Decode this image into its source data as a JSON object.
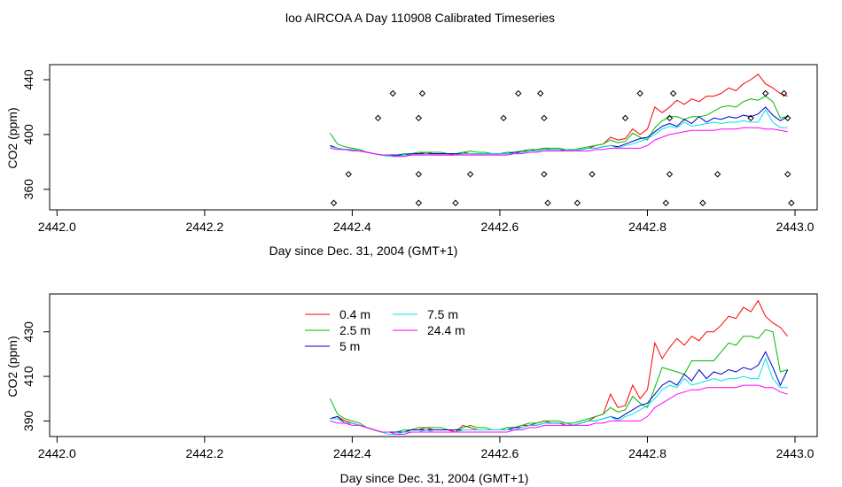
{
  "title": "loo AIRCOA A  Day 110908  Calibrated Timeseries",
  "colors": {
    "0.4 m": "#ff0000",
    "2.5 m": "#00bb00",
    "5 m": "#0000cc",
    "7.5 m": "#00e5e5",
    "24.4 m": "#ff00ff",
    "markers": "#000000"
  },
  "chart_data": [
    {
      "type": "line",
      "xlabel": "Day since Dec. 31, 2004 (GMT+1)",
      "ylabel": "CO2 (ppm)",
      "xlim": [
        2441.99,
        2443.03
      ],
      "ylim": [
        345,
        451
      ],
      "xticks": [
        2442.0,
        2442.2,
        2442.4,
        2442.6,
        2442.8,
        2443.0
      ],
      "xtick_labels": [
        "2442.0",
        "2442.2",
        "2442.4",
        "2442.6",
        "2442.8",
        "2443.0"
      ],
      "yticks": [
        360,
        400,
        440
      ],
      "ytick_labels": [
        "360",
        "400",
        "440"
      ],
      "x": [
        2442.37,
        2442.38,
        2442.39,
        2442.4,
        2442.41,
        2442.42,
        2442.43,
        2442.44,
        2442.45,
        2442.46,
        2442.47,
        2442.48,
        2442.49,
        2442.5,
        2442.51,
        2442.52,
        2442.53,
        2442.54,
        2442.55,
        2442.56,
        2442.57,
        2442.58,
        2442.59,
        2442.6,
        2442.61,
        2442.62,
        2442.63,
        2442.64,
        2442.65,
        2442.66,
        2442.67,
        2442.68,
        2442.69,
        2442.7,
        2442.71,
        2442.72,
        2442.73,
        2442.74,
        2442.75,
        2442.76,
        2442.77,
        2442.78,
        2442.79,
        2442.8,
        2442.81,
        2442.82,
        2442.83,
        2442.84,
        2442.85,
        2442.86,
        2442.87,
        2442.88,
        2442.89,
        2442.9,
        2442.91,
        2442.92,
        2442.93,
        2442.94,
        2442.95,
        2442.96,
        2442.97,
        2442.98,
        2442.99
      ],
      "series": [
        {
          "name": "0.4 m",
          "values": [
            392,
            390,
            389,
            389,
            388,
            387,
            386,
            385,
            385,
            385,
            385,
            386,
            386,
            387,
            386,
            386,
            386,
            385,
            387,
            386,
            386,
            386,
            386,
            386,
            387,
            387,
            388,
            388,
            389,
            390,
            389,
            389,
            388,
            388,
            389,
            390,
            392,
            393,
            398,
            396,
            397,
            404,
            400,
            404,
            420,
            416,
            420,
            425,
            422,
            426,
            424,
            428,
            428,
            430,
            434,
            432,
            437,
            440,
            444,
            437,
            434,
            430,
            428
          ]
        },
        {
          "name": "2.5 m",
          "values": [
            401,
            393,
            391,
            390,
            389,
            387,
            386,
            385,
            385,
            385,
            386,
            386,
            387,
            387,
            387,
            387,
            386,
            386,
            387,
            388,
            387,
            387,
            386,
            386,
            387,
            387,
            388,
            389,
            389,
            390,
            390,
            390,
            389,
            389,
            390,
            391,
            392,
            393,
            396,
            394,
            395,
            401,
            398,
            396,
            405,
            410,
            413,
            413,
            411,
            413,
            413,
            414,
            417,
            420,
            421,
            420,
            424,
            426,
            425,
            428,
            424,
            412,
            413
          ]
        },
        {
          "name": "5 m",
          "values": [
            392,
            390,
            389,
            389,
            388,
            387,
            386,
            385,
            385,
            385,
            385,
            386,
            386,
            386,
            386,
            386,
            386,
            386,
            386,
            386,
            386,
            386,
            386,
            386,
            386,
            387,
            387,
            388,
            388,
            389,
            389,
            389,
            389,
            388,
            389,
            390,
            390,
            391,
            392,
            391,
            393,
            395,
            397,
            398,
            402,
            406,
            408,
            406,
            411,
            408,
            413,
            409,
            412,
            411,
            413,
            412,
            414,
            413,
            415,
            420,
            414,
            410,
            413
          ]
        },
        {
          "name": "7.5 m",
          "values": [
            391,
            390,
            389,
            389,
            388,
            387,
            386,
            385,
            384,
            384,
            385,
            385,
            385,
            386,
            385,
            385,
            385,
            385,
            386,
            386,
            386,
            386,
            386,
            386,
            386,
            386,
            387,
            388,
            388,
            389,
            389,
            389,
            389,
            388,
            389,
            390,
            390,
            391,
            392,
            390,
            392,
            393,
            395,
            397,
            400,
            404,
            406,
            405,
            409,
            406,
            407,
            408,
            409,
            408,
            409,
            409,
            410,
            409,
            409,
            418,
            409,
            405,
            405
          ]
        },
        {
          "name": "24.4 m",
          "values": [
            390,
            389,
            389,
            388,
            388,
            387,
            386,
            385,
            385,
            384,
            384,
            385,
            385,
            385,
            385,
            385,
            385,
            385,
            385,
            385,
            385,
            385,
            385,
            385,
            385,
            386,
            386,
            387,
            387,
            388,
            388,
            388,
            388,
            388,
            388,
            388,
            389,
            389,
            390,
            390,
            390,
            390,
            390,
            392,
            396,
            398,
            400,
            401,
            402,
            403,
            403,
            403,
            403,
            404,
            404,
            404,
            405,
            405,
            405,
            404,
            404,
            403,
            402
          ]
        }
      ],
      "markers": [
        [
          2442.375,
          350
        ],
        [
          2442.395,
          371
        ],
        [
          2442.435,
          412
        ],
        [
          2442.455,
          430
        ],
        [
          2442.49,
          350
        ],
        [
          2442.49,
          371
        ],
        [
          2442.49,
          412
        ],
        [
          2442.495,
          430
        ],
        [
          2442.54,
          350
        ],
        [
          2442.56,
          371
        ],
        [
          2442.605,
          412
        ],
        [
          2442.625,
          430
        ],
        [
          2442.655,
          430
        ],
        [
          2442.66,
          371
        ],
        [
          2442.66,
          412
        ],
        [
          2442.665,
          350
        ],
        [
          2442.705,
          350
        ],
        [
          2442.725,
          371
        ],
        [
          2442.77,
          412
        ],
        [
          2442.79,
          430
        ],
        [
          2442.825,
          350
        ],
        [
          2442.83,
          371
        ],
        [
          2442.83,
          412
        ],
        [
          2442.835,
          430
        ],
        [
          2442.875,
          350
        ],
        [
          2442.895,
          371
        ],
        [
          2442.94,
          412
        ],
        [
          2442.96,
          430
        ],
        [
          2442.985,
          430
        ],
        [
          2442.99,
          371
        ],
        [
          2442.99,
          412
        ],
        [
          2442.995,
          350
        ]
      ]
    },
    {
      "type": "line",
      "xlabel": "Day since Dec. 31, 2004 (GMT+1)",
      "ylabel": "CO2 (ppm)",
      "xlim": [
        2441.99,
        2443.03
      ],
      "ylim": [
        383,
        447
      ],
      "xticks": [
        2442.0,
        2442.2,
        2442.4,
        2442.6,
        2442.8,
        2443.0
      ],
      "xtick_labels": [
        "2442.0",
        "2442.2",
        "2442.4",
        "2442.6",
        "2442.8",
        "2443.0"
      ],
      "yticks": [
        390,
        410,
        430
      ],
      "ytick_labels": [
        "390",
        "410",
        "430"
      ],
      "legend": {
        "position": "top-left",
        "entries": [
          "0.4 m",
          "2.5 m",
          "5 m",
          "7.5 m",
          "24.4 m"
        ]
      },
      "x": [
        2442.37,
        2442.38,
        2442.39,
        2442.4,
        2442.41,
        2442.42,
        2442.43,
        2442.44,
        2442.45,
        2442.46,
        2442.47,
        2442.48,
        2442.49,
        2442.5,
        2442.51,
        2442.52,
        2442.53,
        2442.54,
        2442.55,
        2442.56,
        2442.57,
        2442.58,
        2442.59,
        2442.6,
        2442.61,
        2442.62,
        2442.63,
        2442.64,
        2442.65,
        2442.66,
        2442.67,
        2442.68,
        2442.69,
        2442.7,
        2442.71,
        2442.72,
        2442.73,
        2442.74,
        2442.75,
        2442.76,
        2442.77,
        2442.78,
        2442.79,
        2442.8,
        2442.81,
        2442.82,
        2442.83,
        2442.84,
        2442.85,
        2442.86,
        2442.87,
        2442.88,
        2442.89,
        2442.9,
        2442.91,
        2442.92,
        2442.93,
        2442.94,
        2442.95,
        2442.96,
        2442.97,
        2442.98,
        2442.99
      ],
      "series": [
        {
          "name": "0.4 m",
          "values": [
            391,
            392,
            390,
            389,
            388,
            387,
            386,
            385,
            385,
            385,
            385,
            386,
            386,
            387,
            386,
            386,
            386,
            385,
            388,
            387,
            386,
            386,
            386,
            386,
            387,
            387,
            388,
            388,
            389,
            390,
            389,
            389,
            388,
            388,
            389,
            390,
            392,
            393,
            402,
            396,
            397,
            406,
            400,
            404,
            425,
            418,
            423,
            427,
            424,
            428,
            426,
            430,
            430,
            433,
            437,
            436,
            441,
            439,
            444,
            437,
            434,
            432,
            428
          ]
        },
        {
          "name": "2.5 m",
          "values": [
            400,
            393,
            391,
            390,
            389,
            387,
            386,
            385,
            385,
            385,
            386,
            386,
            387,
            387,
            387,
            387,
            386,
            386,
            387,
            388,
            387,
            387,
            386,
            386,
            387,
            387,
            388,
            389,
            389,
            390,
            390,
            390,
            389,
            389,
            390,
            391,
            392,
            393,
            396,
            394,
            395,
            401,
            398,
            396,
            405,
            414,
            413,
            412,
            411,
            417,
            417,
            417,
            417,
            421,
            425,
            424,
            428,
            428,
            427,
            431,
            430,
            412,
            413
          ]
        },
        {
          "name": "5 m",
          "values": [
            391,
            392,
            389,
            389,
            388,
            387,
            386,
            385,
            385,
            385,
            385,
            386,
            386,
            386,
            386,
            386,
            386,
            386,
            386,
            386,
            386,
            386,
            386,
            386,
            386,
            387,
            387,
            388,
            388,
            389,
            389,
            389,
            389,
            388,
            389,
            390,
            390,
            391,
            392,
            391,
            393,
            395,
            397,
            398,
            402,
            406,
            408,
            406,
            411,
            408,
            413,
            409,
            412,
            411,
            413,
            412,
            414,
            413,
            415,
            421,
            414,
            406,
            413
          ]
        },
        {
          "name": "7.5 m",
          "values": [
            391,
            391,
            389,
            389,
            388,
            387,
            386,
            385,
            384,
            384,
            385,
            385,
            385,
            386,
            385,
            385,
            385,
            385,
            386,
            386,
            386,
            386,
            386,
            386,
            386,
            386,
            387,
            388,
            388,
            389,
            389,
            389,
            389,
            388,
            389,
            390,
            390,
            391,
            392,
            390,
            392,
            393,
            395,
            397,
            400,
            404,
            406,
            405,
            409,
            406,
            407,
            408,
            409,
            408,
            409,
            409,
            410,
            409,
            409,
            418,
            409,
            405,
            405
          ]
        },
        {
          "name": "24.4 m",
          "values": [
            390,
            389,
            389,
            388,
            388,
            387,
            386,
            385,
            385,
            384,
            384,
            385,
            385,
            385,
            385,
            385,
            385,
            385,
            385,
            385,
            385,
            385,
            385,
            385,
            385,
            386,
            386,
            387,
            387,
            388,
            388,
            388,
            388,
            388,
            388,
            388,
            389,
            389,
            390,
            390,
            390,
            390,
            390,
            392,
            396,
            398,
            400,
            402,
            403,
            404,
            404,
            405,
            405,
            405,
            405,
            405,
            406,
            406,
            406,
            405,
            405,
            403,
            402
          ]
        }
      ]
    }
  ]
}
